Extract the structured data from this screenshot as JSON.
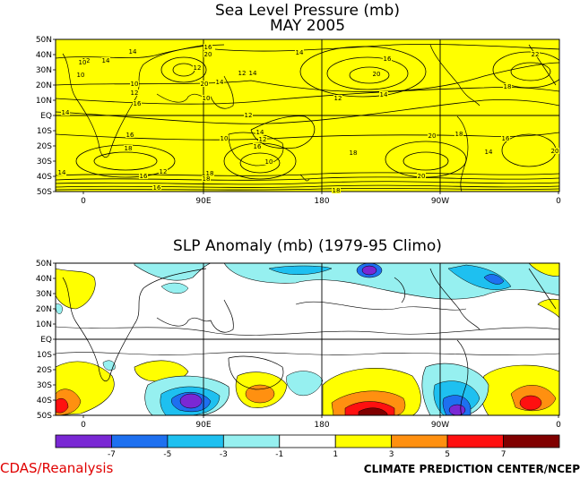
{
  "chart_data": [
    {
      "type": "contour",
      "title": "Sea Level Pressure (mb)",
      "subtitle": "MAY 2005",
      "ylim": [
        -50,
        50
      ],
      "xlim": [
        -30,
        360
      ],
      "y_ticks": [
        "50N",
        "40N",
        "30N",
        "20N",
        "10N",
        "EQ",
        "10S",
        "20S",
        "30S",
        "40S",
        "50S"
      ],
      "x_ticks": [
        "0",
        "90E",
        "180",
        "90W",
        "0"
      ],
      "contour_labels": [
        "14",
        "14",
        "12",
        "10",
        "10",
        "10",
        "12",
        "16",
        "16",
        "18",
        "20",
        "12",
        "20",
        "10",
        "14",
        "12",
        "14",
        "16",
        "12",
        "10",
        "12",
        "14",
        "16",
        "10",
        "12",
        "16",
        "16",
        "18",
        "18",
        "20",
        "14",
        "12",
        "14",
        "16",
        "18",
        "20",
        "14",
        "16",
        "18",
        "20",
        "22",
        "14",
        "14",
        "18",
        "18",
        "20"
      ],
      "background_color": "#ffff00"
    },
    {
      "type": "heatmap",
      "title": "SLP Anomaly (mb) (1979-95 Climo)",
      "ylim": [
        -50,
        50
      ],
      "xlim": [
        -30,
        360
      ],
      "y_ticks": [
        "50N",
        "40N",
        "30N",
        "20N",
        "10N",
        "EQ",
        "10S",
        "20S",
        "30S",
        "40S",
        "50S"
      ],
      "x_ticks": [
        "0",
        "90E",
        "180",
        "90W",
        "0"
      ],
      "colorbar": {
        "boundaries": [
          "-7",
          "-5",
          "-3",
          "-1",
          "1",
          "3",
          "5",
          "7"
        ],
        "colors": [
          "#7a28d4",
          "#1e70f0",
          "#1ec0f0",
          "#96f0f0",
          "#ffffff",
          "#ffff00",
          "#ff9010",
          "#ff1010",
          "#800000"
        ]
      }
    }
  ],
  "footer": {
    "left": "CDAS/Reanalysis",
    "right": "CLIMATE PREDICTION CENTER/NCEP"
  }
}
